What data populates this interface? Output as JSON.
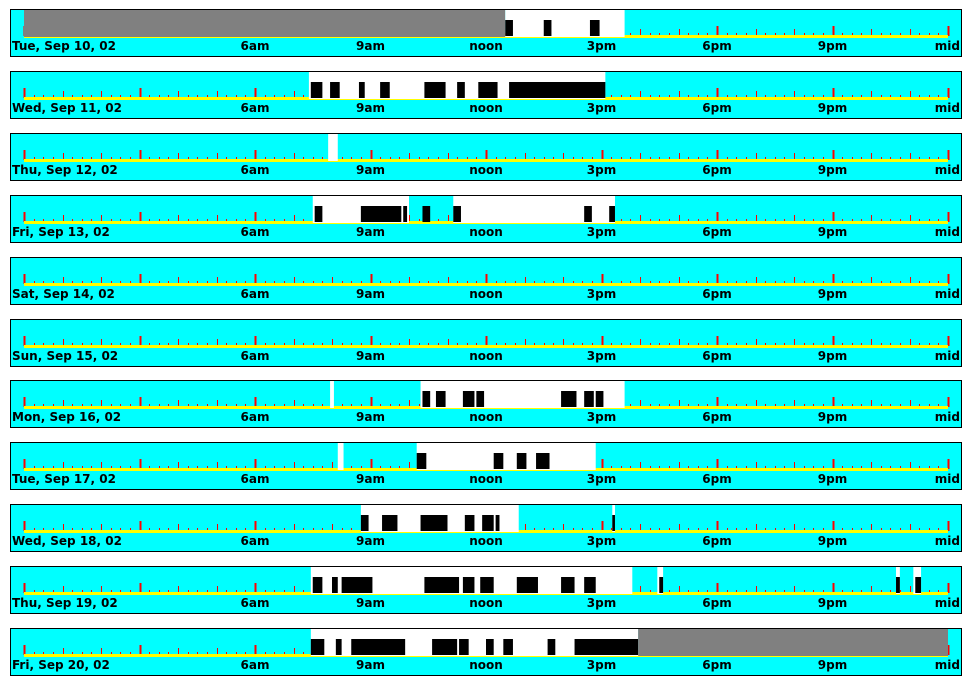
{
  "colors": {
    "background": "#00ffff",
    "border": "#000000",
    "baseline": "#ffff00",
    "tick": "#ff0000",
    "active": "#ffffff",
    "event": "#000000",
    "no_data": "#808080"
  },
  "chart_data": {
    "type": "timeline",
    "x_unit": "hours",
    "x_range": [
      0,
      24
    ],
    "tick_labels": [
      {
        "hour": 6,
        "text": "6am"
      },
      {
        "hour": 9,
        "text": "9am"
      },
      {
        "hour": 12,
        "text": "noon"
      },
      {
        "hour": 15,
        "text": "3pm"
      },
      {
        "hour": 18,
        "text": "6pm"
      },
      {
        "hour": 21,
        "text": "9pm"
      },
      {
        "hour": 24,
        "text": "mid"
      }
    ],
    "days": [
      {
        "label": "Tue, Sep 10, 02",
        "no_data": [
          [
            0.0,
            12.5
          ]
        ],
        "active": [
          [
            12.5,
            15.6
          ]
        ],
        "events": [
          [
            12.5,
            12.7
          ],
          [
            13.5,
            13.7
          ],
          [
            14.7,
            14.95
          ]
        ]
      },
      {
        "label": "Wed, Sep 11, 02",
        "no_data": [],
        "active": [
          [
            7.4,
            15.1
          ]
        ],
        "events": [
          [
            7.45,
            7.75
          ],
          [
            7.95,
            8.2
          ],
          [
            8.7,
            8.85
          ],
          [
            9.25,
            9.5
          ],
          [
            10.4,
            10.95
          ],
          [
            11.25,
            11.45
          ],
          [
            11.8,
            12.3
          ],
          [
            12.6,
            15.1
          ]
        ]
      },
      {
        "label": "Thu, Sep 12, 02",
        "no_data": [],
        "active": [
          [
            7.9,
            8.15
          ]
        ],
        "events": []
      },
      {
        "label": "Fri, Sep 13, 02",
        "no_data": [],
        "active": [
          [
            7.5,
            10.0
          ],
          [
            11.15,
            15.35
          ]
        ],
        "events": [
          [
            7.55,
            7.75
          ],
          [
            8.75,
            9.8
          ],
          [
            9.85,
            9.95
          ],
          [
            10.35,
            10.55
          ],
          [
            11.15,
            11.35
          ],
          [
            14.55,
            14.75
          ],
          [
            15.2,
            15.35
          ]
        ]
      },
      {
        "label": "Sat, Sep 14, 02",
        "no_data": [],
        "active": [],
        "events": []
      },
      {
        "label": "Sun, Sep 15, 02",
        "no_data": [],
        "active": [],
        "events": []
      },
      {
        "label": "Mon, Sep 16, 02",
        "no_data": [],
        "active": [
          [
            7.95,
            8.05
          ],
          [
            10.3,
            15.6
          ]
        ],
        "events": [
          [
            10.35,
            10.55
          ],
          [
            10.7,
            10.95
          ],
          [
            11.4,
            11.7
          ],
          [
            11.75,
            11.95
          ],
          [
            13.95,
            14.35
          ],
          [
            14.55,
            14.8
          ],
          [
            14.85,
            15.05
          ]
        ]
      },
      {
        "label": "Tue, Sep 17, 02",
        "no_data": [],
        "active": [
          [
            8.15,
            8.3
          ],
          [
            10.2,
            14.85
          ]
        ],
        "events": [
          [
            10.2,
            10.45
          ],
          [
            12.2,
            12.45
          ],
          [
            12.8,
            13.05
          ],
          [
            13.3,
            13.65
          ]
        ]
      },
      {
        "label": "Wed, Sep 18, 02",
        "no_data": [],
        "active": [
          [
            8.75,
            12.85
          ],
          [
            15.28,
            15.35
          ]
        ],
        "events": [
          [
            8.75,
            8.95
          ],
          [
            9.3,
            9.7
          ],
          [
            10.3,
            11.0
          ],
          [
            11.45,
            11.7
          ],
          [
            11.9,
            12.2
          ],
          [
            12.25,
            12.35
          ],
          [
            15.28,
            15.35
          ]
        ]
      },
      {
        "label": "Thu, Sep 19, 02",
        "no_data": [],
        "active": [
          [
            7.45,
            15.8
          ],
          [
            16.45,
            16.6
          ],
          [
            22.65,
            22.75
          ],
          [
            23.1,
            23.3
          ]
        ],
        "events": [
          [
            7.5,
            7.75
          ],
          [
            8.0,
            8.15
          ],
          [
            8.25,
            9.05
          ],
          [
            10.4,
            11.3
          ],
          [
            11.4,
            11.7
          ],
          [
            11.85,
            12.2
          ],
          [
            12.8,
            13.35
          ],
          [
            13.95,
            14.3
          ],
          [
            14.55,
            14.85
          ],
          [
            16.5,
            16.6
          ],
          [
            22.65,
            22.75
          ],
          [
            23.15,
            23.3
          ]
        ]
      },
      {
        "label": "Fri, Sep 20, 02",
        "no_data": [
          [
            15.95,
            24.0
          ]
        ],
        "active": [
          [
            7.45,
            15.95
          ]
        ],
        "events": [
          [
            7.45,
            7.8
          ],
          [
            8.1,
            8.25
          ],
          [
            8.5,
            9.9
          ],
          [
            10.6,
            11.25
          ],
          [
            11.3,
            11.55
          ],
          [
            12.0,
            12.2
          ],
          [
            12.45,
            12.7
          ],
          [
            13.6,
            13.8
          ],
          [
            14.3,
            15.95
          ]
        ]
      }
    ]
  }
}
